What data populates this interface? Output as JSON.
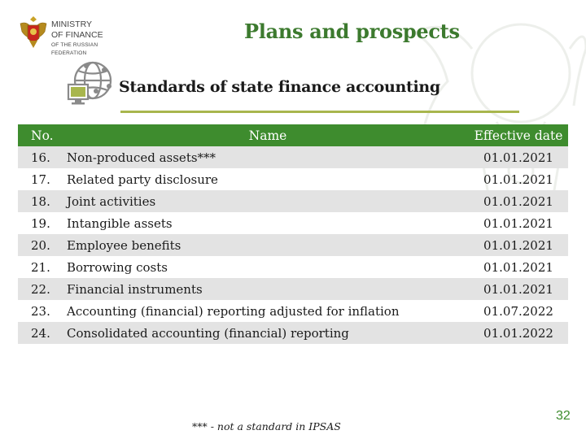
{
  "ministry": {
    "line1": "MINISTRY",
    "line2": "OF FINANCE",
    "line3": "OF THE RUSSIAN",
    "line4": "FEDERATION"
  },
  "title": "Plans and prospects",
  "subtitle": "Standards of state finance accounting",
  "table": {
    "headers": {
      "no": "No.",
      "name": "Name",
      "date": "Effective date"
    },
    "rows": [
      {
        "no": "16.",
        "name": "Non-produced assets***",
        "date": "01.01.2021"
      },
      {
        "no": "17.",
        "name": "Related party disclosure",
        "date": "01.01.2021"
      },
      {
        "no": "18.",
        "name": "Joint activities",
        "date": "01.01.2021"
      },
      {
        "no": "19.",
        "name": "Intangible assets",
        "date": "01.01.2021"
      },
      {
        "no": "20.",
        "name": "Employee benefits",
        "date": "01.01.2021"
      },
      {
        "no": "21.",
        "name": "Borrowing costs",
        "date": "01.01.2021"
      },
      {
        "no": "22.",
        "name": "Financial instruments",
        "date": "01.01.2021"
      },
      {
        "no": "23.",
        "name": "Accounting (financial) reporting adjusted for inflation",
        "date": "01.07.2022"
      },
      {
        "no": "24.",
        "name": "Consolidated accounting (financial) reporting",
        "date": "01.01.2022"
      }
    ]
  },
  "footnote": "*** - not a standard in IPSAS",
  "page_number": "32",
  "colors": {
    "brand_green": "#3e8c2e",
    "title_green": "#3c7a2e",
    "accent_olive": "#a8b64d",
    "row_shade": "#e3e3e3"
  },
  "icons": [
    "coat-of-arms-emblem",
    "globe-network-monitor-icon",
    "eagle-watermark"
  ]
}
